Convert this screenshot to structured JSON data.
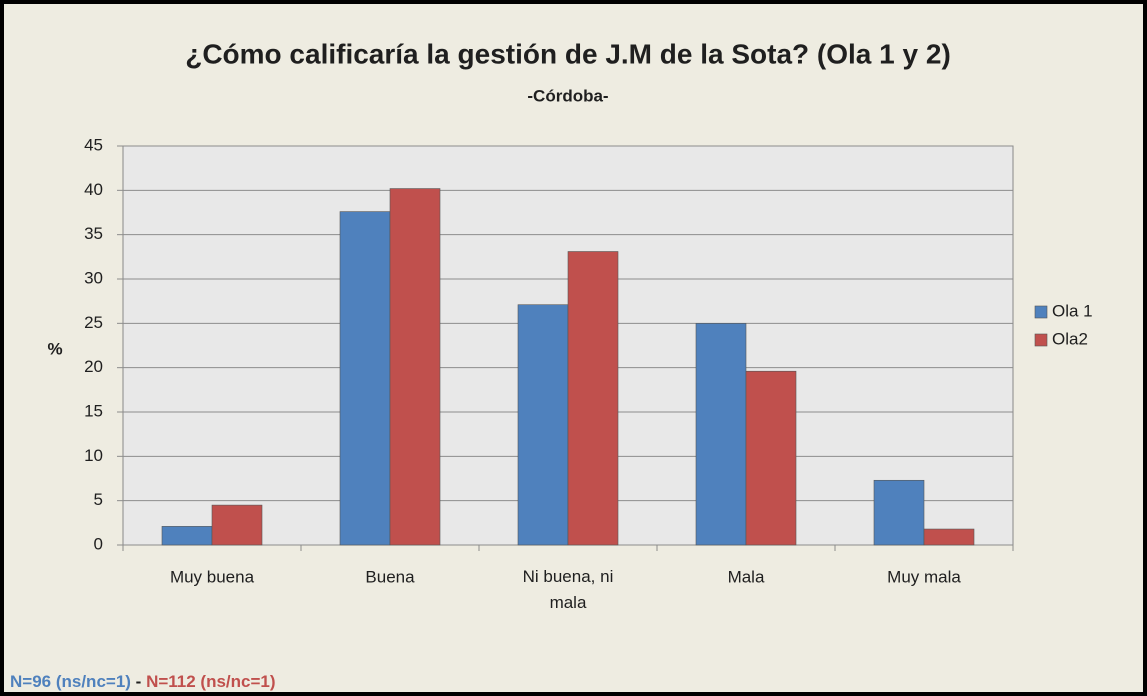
{
  "chart_data": {
    "type": "bar",
    "title": "¿Cómo calificaría la gestión de J.M de la Sota? (Ola 1 y 2)",
    "subtitle": "-Córdoba-",
    "y_label": "%",
    "categories": [
      "Muy buena",
      "Buena",
      "Ni buena, ni mala",
      "Mala",
      "Muy mala"
    ],
    "series": [
      {
        "name": "Ola 1",
        "color": "#4f81bd",
        "values": [
          2.1,
          37.6,
          27.1,
          25.0,
          7.3
        ]
      },
      {
        "name": "Ola2",
        "color": "#c0504d",
        "values": [
          4.5,
          40.2,
          33.1,
          19.6,
          1.8
        ]
      }
    ],
    "ylim": [
      0,
      45
    ],
    "yticks": [
      0,
      5,
      10,
      15,
      20,
      25,
      30,
      35,
      40,
      45
    ],
    "grid": true,
    "legend": "right",
    "footnote": [
      {
        "text": "N=96 (ns/nc=1)",
        "color": "#4f81bd"
      },
      {
        "text": " - ",
        "color": "#1f1f1f"
      },
      {
        "text": "N=112 (ns/nc=1)",
        "color": "#c0504d"
      }
    ]
  }
}
